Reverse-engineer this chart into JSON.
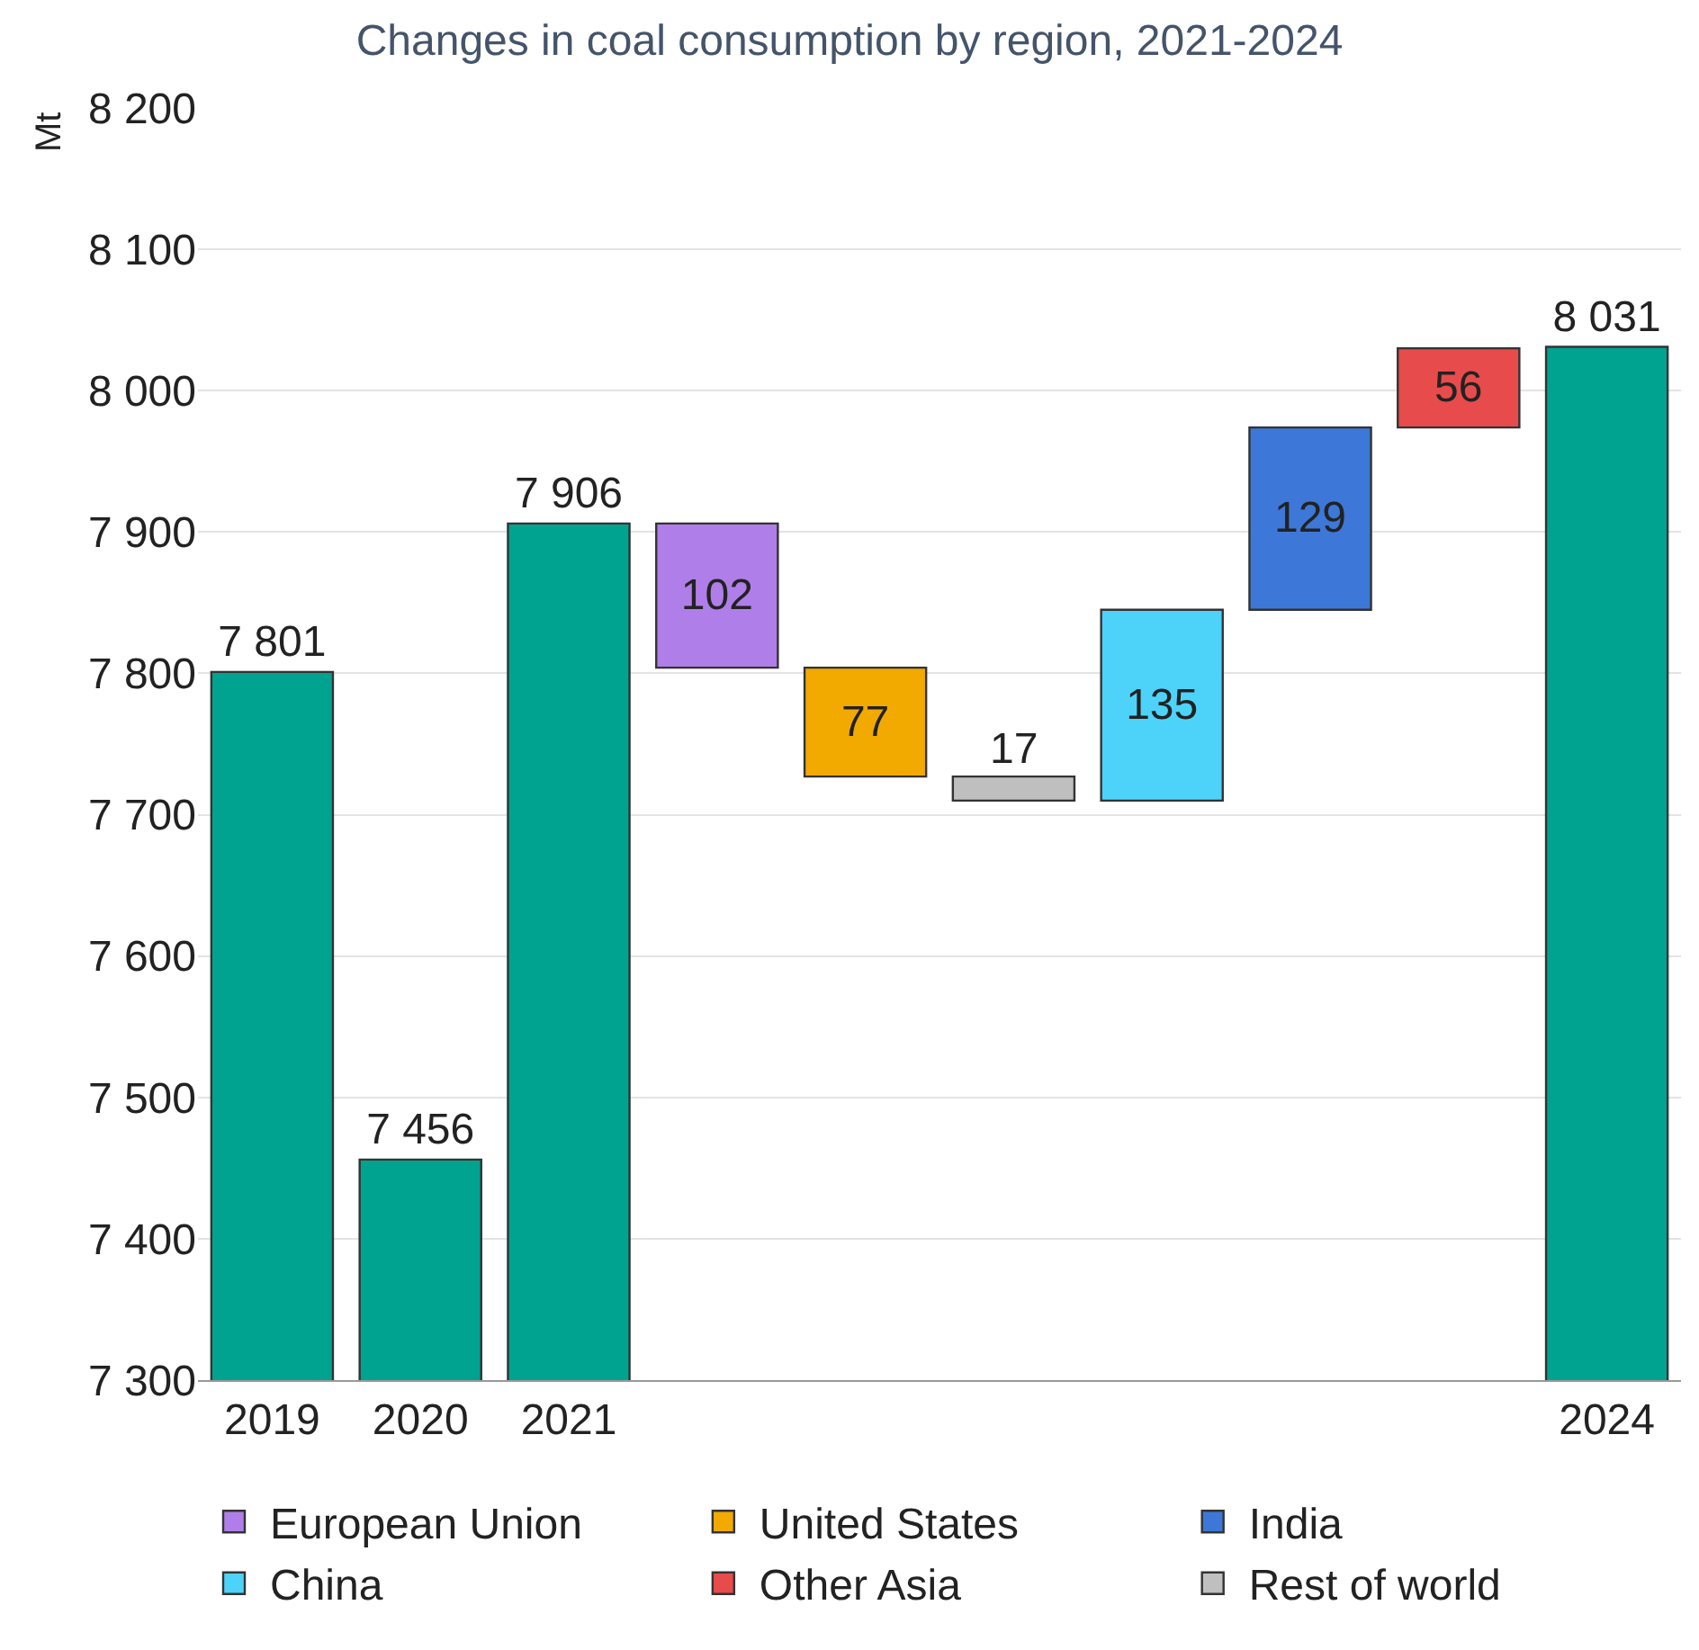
{
  "chart_data": {
    "type": "bar",
    "title": "Changes in coal consumption by region, 2021-2024",
    "ylabel": "Mt",
    "categories": [
      "2019",
      "2020",
      "2021",
      null,
      null,
      null,
      null,
      null,
      null,
      "2024"
    ],
    "series": [
      {
        "color": "#00a38f",
        "values": [
          7801,
          7456,
          7906,
          null,
          null,
          null,
          null,
          null,
          null,
          8031
        ],
        "value_labels": [
          "7 801",
          "7 456",
          "7 906",
          null,
          null,
          null,
          null,
          null,
          null,
          "8 031"
        ]
      },
      {
        "name": "European Union",
        "color": "#b07ee8",
        "values": [
          null,
          null,
          null,
          102,
          null,
          null,
          null,
          null,
          null,
          null
        ],
        "base": [
          null,
          null,
          null,
          7804,
          null,
          null,
          null,
          null,
          null,
          null
        ],
        "data_labels": true
      },
      {
        "name": "United States",
        "color": "#f2a900",
        "values": [
          null,
          null,
          null,
          null,
          77,
          null,
          null,
          null,
          null,
          null
        ],
        "base": [
          null,
          null,
          null,
          null,
          7727,
          null,
          null,
          null,
          null,
          null
        ],
        "data_labels": true
      },
      {
        "name": "India",
        "color": "#3d78d8",
        "values": [
          null,
          null,
          null,
          null,
          null,
          null,
          null,
          129,
          null,
          null
        ],
        "base": [
          null,
          null,
          null,
          null,
          null,
          null,
          null,
          7845,
          null,
          null
        ],
        "data_labels": true
      },
      {
        "name": "China",
        "color": "#4dd3fa",
        "values": [
          null,
          null,
          null,
          null,
          null,
          null,
          135,
          null,
          null,
          null
        ],
        "base": [
          null,
          null,
          null,
          null,
          null,
          null,
          7710,
          null,
          null,
          null
        ],
        "data_labels": true
      },
      {
        "name": "Other Asia",
        "color": "#e84b4b",
        "values": [
          null,
          null,
          null,
          null,
          null,
          null,
          null,
          null,
          56,
          null
        ],
        "base": [
          null,
          null,
          null,
          null,
          null,
          null,
          null,
          null,
          7974,
          null
        ],
        "data_labels": true
      },
      {
        "name": "Rest of world",
        "color": "#bfbfbf",
        "values": [
          null,
          null,
          null,
          null,
          null,
          17,
          null,
          null,
          null,
          null
        ],
        "base": [
          null,
          null,
          null,
          null,
          null,
          7710,
          null,
          null,
          null,
          null
        ],
        "data_labels": true
      }
    ],
    "ylim": [
      7300,
      8200
    ],
    "yticks": [
      {
        "value": 7300,
        "label": "7 300"
      },
      {
        "value": 7400,
        "label": "7 400"
      },
      {
        "value": 7500,
        "label": "7 500"
      },
      {
        "value": 7600,
        "label": "7 600"
      },
      {
        "value": 7700,
        "label": "7 700"
      },
      {
        "value": 7800,
        "label": "7 800"
      },
      {
        "value": 7900,
        "label": "7 900"
      },
      {
        "value": 8000,
        "label": "8 000"
      },
      {
        "value": 8100,
        "label": "8 100"
      },
      {
        "value": 8200,
        "label": "8 200"
      }
    ],
    "grid": "y",
    "legend": "bottom"
  }
}
